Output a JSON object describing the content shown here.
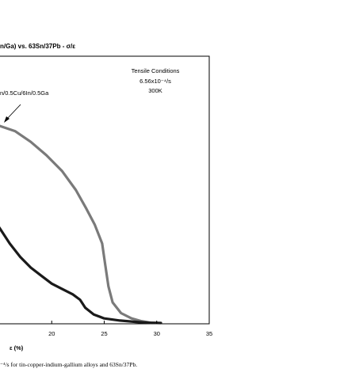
{
  "chart_data": {
    "type": "line",
    "title": "n/Ga) vs. 63Sn/37Pb - σ/ε",
    "xlabel": "ε  (%)",
    "x_ticks": [
      "20",
      "25",
      "30",
      "35"
    ],
    "xlim_visible": [
      15,
      35
    ],
    "annotation": {
      "heading": "Tensile Conditions",
      "rate": "6.56x10⁻⁴/s",
      "temperature": "300K"
    },
    "series_label": "n/0.5Cu/6In/0.5Ga",
    "caption": "⁻⁴/s for tin-copper-indium-gallium alloys and 63Sn/37Pb.",
    "series": [
      {
        "color": "#7a7a7a",
        "points": [
          [
            15,
            0.74
          ],
          [
            16.5,
            0.72
          ],
          [
            18,
            0.68
          ],
          [
            19.5,
            0.63
          ],
          [
            21,
            0.57
          ],
          [
            22.3,
            0.5
          ],
          [
            23.3,
            0.43
          ],
          [
            24.1,
            0.37
          ],
          [
            24.8,
            0.3
          ],
          [
            25.1,
            0.22
          ],
          [
            25.4,
            0.14
          ],
          [
            25.8,
            0.08
          ],
          [
            26.6,
            0.04
          ],
          [
            27.6,
            0.02
          ],
          [
            28.5,
            0.01
          ],
          [
            29.4,
            0.004
          ]
        ]
      },
      {
        "color": "#1a1a1a",
        "points": [
          [
            15,
            0.36
          ],
          [
            16,
            0.3
          ],
          [
            17,
            0.25
          ],
          [
            18,
            0.21
          ],
          [
            19,
            0.18
          ],
          [
            20,
            0.15
          ],
          [
            21,
            0.13
          ],
          [
            22,
            0.11
          ],
          [
            22.7,
            0.09
          ],
          [
            23.2,
            0.06
          ],
          [
            24,
            0.035
          ],
          [
            25,
            0.02
          ],
          [
            26.5,
            0.012
          ],
          [
            28,
            0.007
          ],
          [
            29.2,
            0.004
          ],
          [
            30.4,
            0.003
          ]
        ]
      }
    ]
  }
}
